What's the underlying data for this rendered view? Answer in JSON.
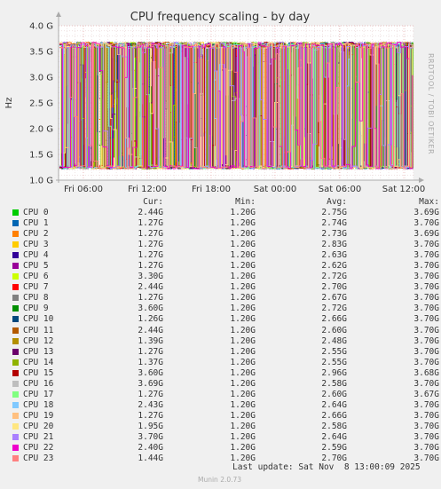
{
  "chart_data": {
    "type": "line",
    "title": "CPU frequency scaling - by day",
    "ylabel": "Hz",
    "side_label": "RRDTOOL / TOBI OETIKER",
    "ylim": [
      1.0,
      4.0
    ],
    "yticks": [
      "1.0 G",
      "1.5 G",
      "2.0 G",
      "2.5 G",
      "3.0 G",
      "3.5 G",
      "4.0 G"
    ],
    "xticks": [
      "Fri 06:00",
      "Fri 12:00",
      "Fri 18:00",
      "Sat 00:00",
      "Sat 06:00",
      "Sat 12:00"
    ],
    "grid": true,
    "legend_headers": [
      "Cur:",
      "Min:",
      "Avg:",
      "Max:"
    ],
    "series": [
      {
        "name": "CPU 0",
        "color": "#00cc00",
        "cur": "2.44G",
        "min": "1.20G",
        "avg": "2.75G",
        "max": "3.69G"
      },
      {
        "name": "CPU 1",
        "color": "#0066b3",
        "cur": "1.27G",
        "min": "1.20G",
        "avg": "2.74G",
        "max": "3.70G"
      },
      {
        "name": "CPU 2",
        "color": "#ff8000",
        "cur": "1.27G",
        "min": "1.20G",
        "avg": "2.73G",
        "max": "3.69G"
      },
      {
        "name": "CPU 3",
        "color": "#ffcc00",
        "cur": "1.27G",
        "min": "1.20G",
        "avg": "2.83G",
        "max": "3.70G"
      },
      {
        "name": "CPU 4",
        "color": "#330099",
        "cur": "1.27G",
        "min": "1.20G",
        "avg": "2.63G",
        "max": "3.70G"
      },
      {
        "name": "CPU 5",
        "color": "#990099",
        "cur": "1.27G",
        "min": "1.20G",
        "avg": "2.62G",
        "max": "3.70G"
      },
      {
        "name": "CPU 6",
        "color": "#ccff00",
        "cur": "3.30G",
        "min": "1.20G",
        "avg": "2.72G",
        "max": "3.70G"
      },
      {
        "name": "CPU 7",
        "color": "#ff0000",
        "cur": "2.44G",
        "min": "1.20G",
        "avg": "2.70G",
        "max": "3.70G"
      },
      {
        "name": "CPU 8",
        "color": "#808080",
        "cur": "1.27G",
        "min": "1.20G",
        "avg": "2.67G",
        "max": "3.70G"
      },
      {
        "name": "CPU 9",
        "color": "#008f00",
        "cur": "3.60G",
        "min": "1.20G",
        "avg": "2.72G",
        "max": "3.70G"
      },
      {
        "name": "CPU 10",
        "color": "#00487d",
        "cur": "1.26G",
        "min": "1.20G",
        "avg": "2.66G",
        "max": "3.70G"
      },
      {
        "name": "CPU 11",
        "color": "#b35a00",
        "cur": "2.44G",
        "min": "1.20G",
        "avg": "2.60G",
        "max": "3.70G"
      },
      {
        "name": "CPU 12",
        "color": "#b38f00",
        "cur": "1.39G",
        "min": "1.20G",
        "avg": "2.48G",
        "max": "3.70G"
      },
      {
        "name": "CPU 13",
        "color": "#6b006b",
        "cur": "1.27G",
        "min": "1.20G",
        "avg": "2.55G",
        "max": "3.70G"
      },
      {
        "name": "CPU 14",
        "color": "#8fb300",
        "cur": "1.37G",
        "min": "1.20G",
        "avg": "2.55G",
        "max": "3.70G"
      },
      {
        "name": "CPU 15",
        "color": "#b30000",
        "cur": "3.60G",
        "min": "1.20G",
        "avg": "2.96G",
        "max": "3.68G"
      },
      {
        "name": "CPU 16",
        "color": "#bebebe",
        "cur": "3.69G",
        "min": "1.20G",
        "avg": "2.58G",
        "max": "3.70G"
      },
      {
        "name": "CPU 17",
        "color": "#80ff80",
        "cur": "1.27G",
        "min": "1.20G",
        "avg": "2.60G",
        "max": "3.67G"
      },
      {
        "name": "CPU 18",
        "color": "#80c9ff",
        "cur": "2.43G",
        "min": "1.20G",
        "avg": "2.64G",
        "max": "3.70G"
      },
      {
        "name": "CPU 19",
        "color": "#ffc080",
        "cur": "1.27G",
        "min": "1.20G",
        "avg": "2.66G",
        "max": "3.70G"
      },
      {
        "name": "CPU 20",
        "color": "#ffe680",
        "cur": "1.95G",
        "min": "1.20G",
        "avg": "2.58G",
        "max": "3.70G"
      },
      {
        "name": "CPU 21",
        "color": "#aa80ff",
        "cur": "3.70G",
        "min": "1.20G",
        "avg": "2.64G",
        "max": "3.70G"
      },
      {
        "name": "CPU 22",
        "color": "#ee00cc",
        "cur": "2.40G",
        "min": "1.20G",
        "avg": "2.59G",
        "max": "3.70G"
      },
      {
        "name": "CPU 23",
        "color": "#ff8080",
        "cur": "1.44G",
        "min": "1.20G",
        "avg": "2.70G",
        "max": "3.70G"
      }
    ]
  },
  "footer": {
    "last_update": "Last update: Sat Nov  8 13:00:09 2025",
    "version": "Munin 2.0.73"
  }
}
